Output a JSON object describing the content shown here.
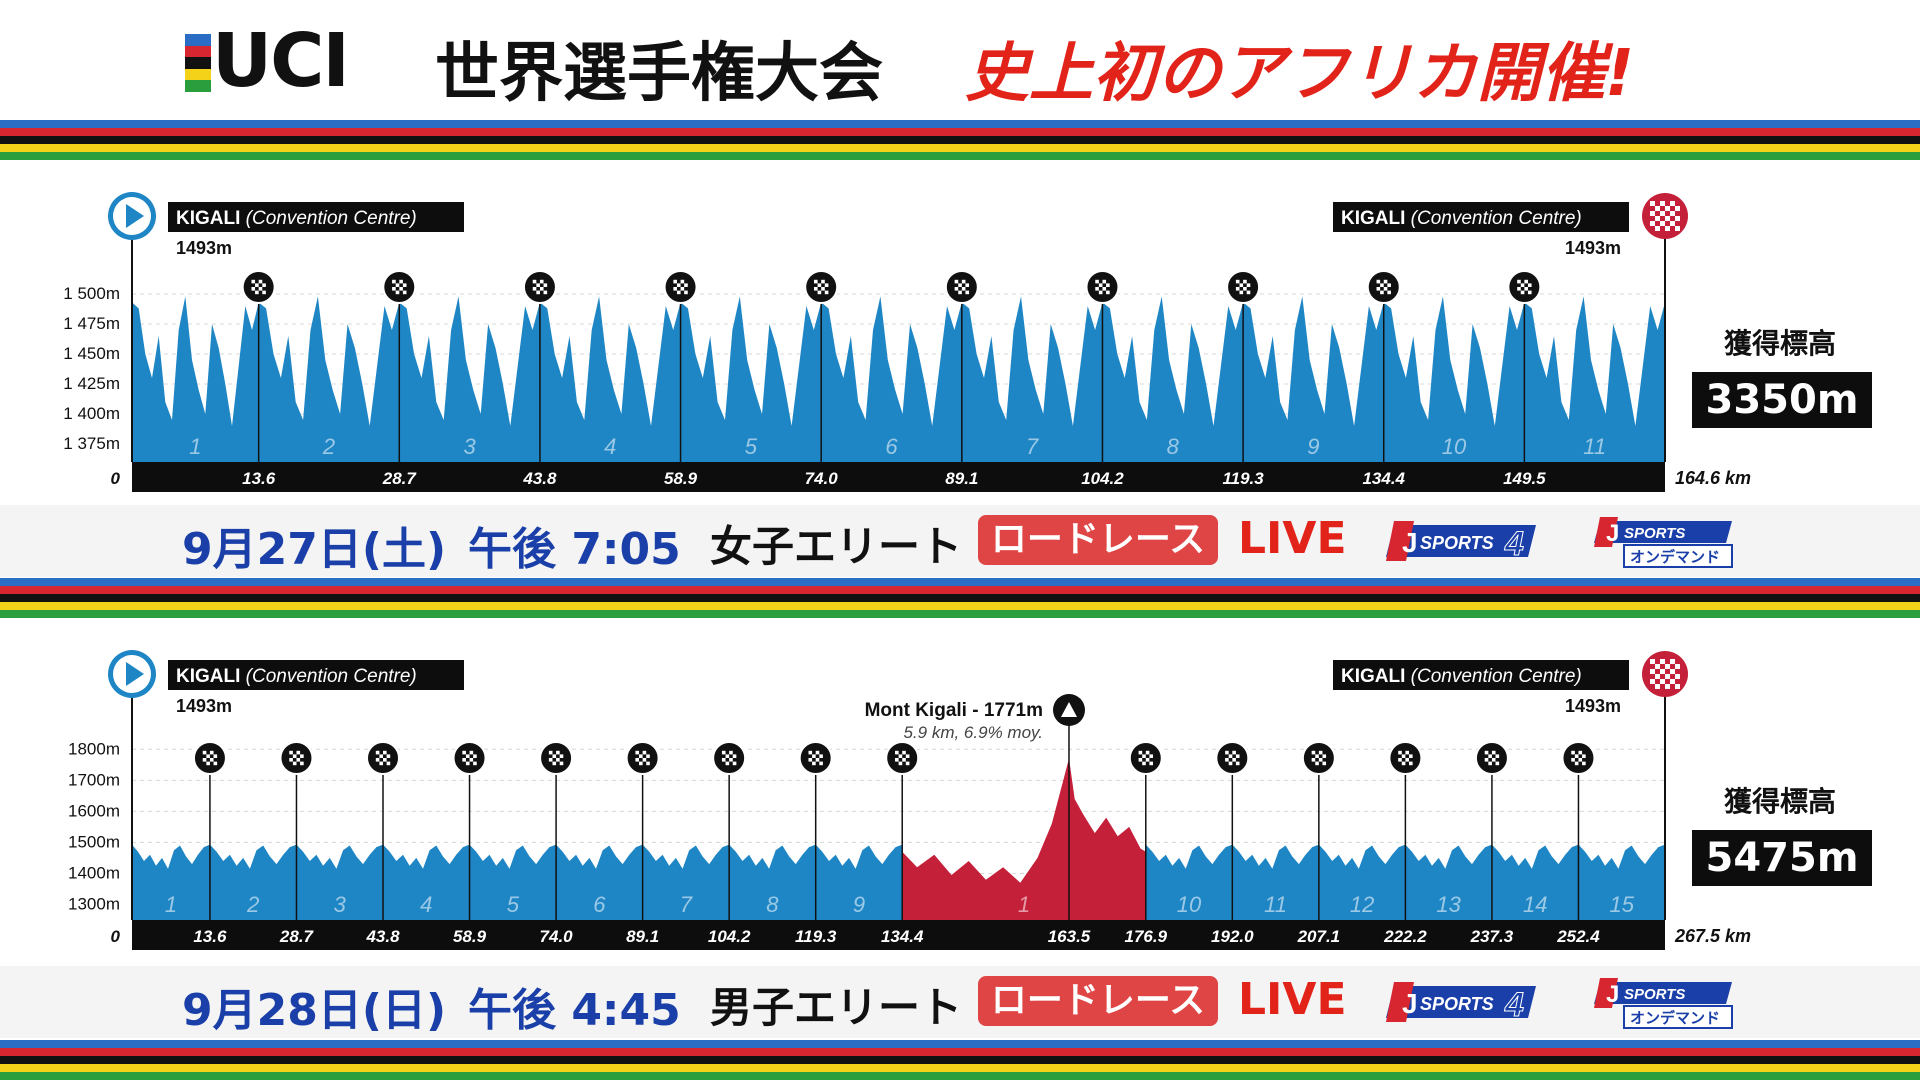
{
  "header": {
    "uci_logo_text": "UCI",
    "title": "世界選手権大会",
    "highlight": "史上初のアフリカ開催!"
  },
  "colors": {
    "rainbow": [
      "#2b6cc4",
      "#d7262f",
      "#111111",
      "#f4d21a",
      "#2a9d3c"
    ],
    "profile_blue": "#1f86c6",
    "climb_red": "#c4203a",
    "date_blue": "#1a3fa8",
    "live_red": "#e2231a"
  },
  "chart_data": [
    {
      "type": "area",
      "start_label": "KIGALI",
      "start_label_sub": "(Convention Centre)",
      "start_elev": "1493m",
      "finish_label": "KIGALI",
      "finish_label_sub": "(Convention Centre)",
      "finish_elev": "1493m",
      "y_ticks": [
        "1 500m",
        "1 475m",
        "1 450m",
        "1 425m",
        "1 400m",
        "1 375m"
      ],
      "y_values": [
        1500,
        1475,
        1450,
        1425,
        1400,
        1375
      ],
      "zero_label": "0",
      "ylim": [
        1360,
        1510
      ],
      "total_km": 164.6,
      "total_label": "164.6 km",
      "lap_markers_km": [
        13.6,
        28.7,
        43.8,
        58.9,
        74.0,
        89.1,
        104.2,
        119.3,
        134.4,
        149.5
      ],
      "lap_marker_labels": [
        "13.6",
        "28.7",
        "43.8",
        "58.9",
        "74.0",
        "89.1",
        "104.2",
        "119.3",
        "134.4",
        "149.5"
      ],
      "lap_numbers": [
        "1",
        "2",
        "3",
        "4",
        "5",
        "6",
        "7",
        "8",
        "9",
        "10",
        "11"
      ],
      "lap_elevation_pattern": [
        1493,
        1488,
        1450,
        1430,
        1465,
        1410,
        1395,
        1470,
        1498,
        1445,
        1420,
        1400,
        1475,
        1455,
        1425,
        1390,
        1440,
        1490,
        1470,
        1493
      ],
      "elevation_gain_label": "獲得標高",
      "elevation_gain": "3350m"
    },
    {
      "type": "area",
      "start_label": "KIGALI",
      "start_label_sub": "(Convention Centre)",
      "start_elev": "1493m",
      "finish_label": "KIGALI",
      "finish_label_sub": "(Convention Centre)",
      "finish_elev": "1493m",
      "summit_label": "Mont Kigali - 1771m",
      "summit_sub": "5.9 km, 6.9% moy.",
      "summit_km": 163.5,
      "y_ticks": [
        "1800m",
        "1700m",
        "1600m",
        "1500m",
        "1400m",
        "1300m"
      ],
      "y_values": [
        1800,
        1700,
        1600,
        1500,
        1400,
        1300
      ],
      "zero_label": "0",
      "ylim": [
        1250,
        1830
      ],
      "total_km": 267.5,
      "total_label": "267.5 km",
      "lap_markers_km": [
        13.6,
        28.7,
        43.8,
        58.9,
        74.0,
        89.1,
        104.2,
        119.3,
        134.4,
        176.9,
        192.0,
        207.1,
        222.2,
        237.3,
        252.4
      ],
      "axis_labels": [
        "13.6",
        "28.7",
        "43.8",
        "58.9",
        "74.0",
        "89.1",
        "104.2",
        "119.3",
        "134.4",
        "163.5",
        "176.9",
        "192.0",
        "207.1",
        "222.2",
        "237.3",
        "252.4"
      ],
      "axis_label_km": [
        13.6,
        28.7,
        43.8,
        58.9,
        74.0,
        89.1,
        104.2,
        119.3,
        134.4,
        163.5,
        176.9,
        192.0,
        207.1,
        222.2,
        237.3,
        252.4
      ],
      "lap_numbers_before": [
        "1",
        "2",
        "3",
        "4",
        "5",
        "6",
        "7",
        "8",
        "9"
      ],
      "climb_loop_number": "1",
      "lap_numbers_after": [
        "10",
        "11",
        "12",
        "13",
        "14",
        "15"
      ],
      "climb_segment_km": [
        134.4,
        176.9
      ],
      "climb_profile": [
        [
          134.4,
          1470
        ],
        [
          137,
          1420
        ],
        [
          140,
          1460
        ],
        [
          143,
          1395
        ],
        [
          146,
          1440
        ],
        [
          149,
          1380
        ],
        [
          152,
          1420
        ],
        [
          155,
          1370
        ],
        [
          158,
          1450
        ],
        [
          160.5,
          1560
        ],
        [
          162.5,
          1700
        ],
        [
          163.5,
          1771
        ],
        [
          164.5,
          1640
        ],
        [
          166,
          1590
        ],
        [
          168,
          1530
        ],
        [
          170,
          1580
        ],
        [
          172,
          1520
        ],
        [
          174,
          1550
        ],
        [
          176,
          1480
        ],
        [
          176.9,
          1470
        ]
      ],
      "lap_elevation_pattern": [
        1493,
        1470,
        1440,
        1460,
        1425,
        1450,
        1415,
        1475,
        1490,
        1455,
        1430,
        1460,
        1485,
        1493
      ],
      "elevation_gain_label": "獲得標高",
      "elevation_gain": "5475m"
    }
  ],
  "race1": {
    "date": "9月27日(土)",
    "time": "午後 7:05",
    "category": "女子エリート",
    "race_type": "ロードレース",
    "live": "LIVE",
    "channel": "SPORTS",
    "channel_number": "4",
    "ondemand_brand": "SPORTS",
    "ondemand": "オンデマンド"
  },
  "race2": {
    "date": "9月28日(日)",
    "time": "午後 4:45",
    "category": "男子エリート",
    "race_type": "ロードレース",
    "live": "LIVE",
    "channel": "SPORTS",
    "channel_number": "4",
    "ondemand_brand": "SPORTS",
    "ondemand": "オンデマンド"
  }
}
